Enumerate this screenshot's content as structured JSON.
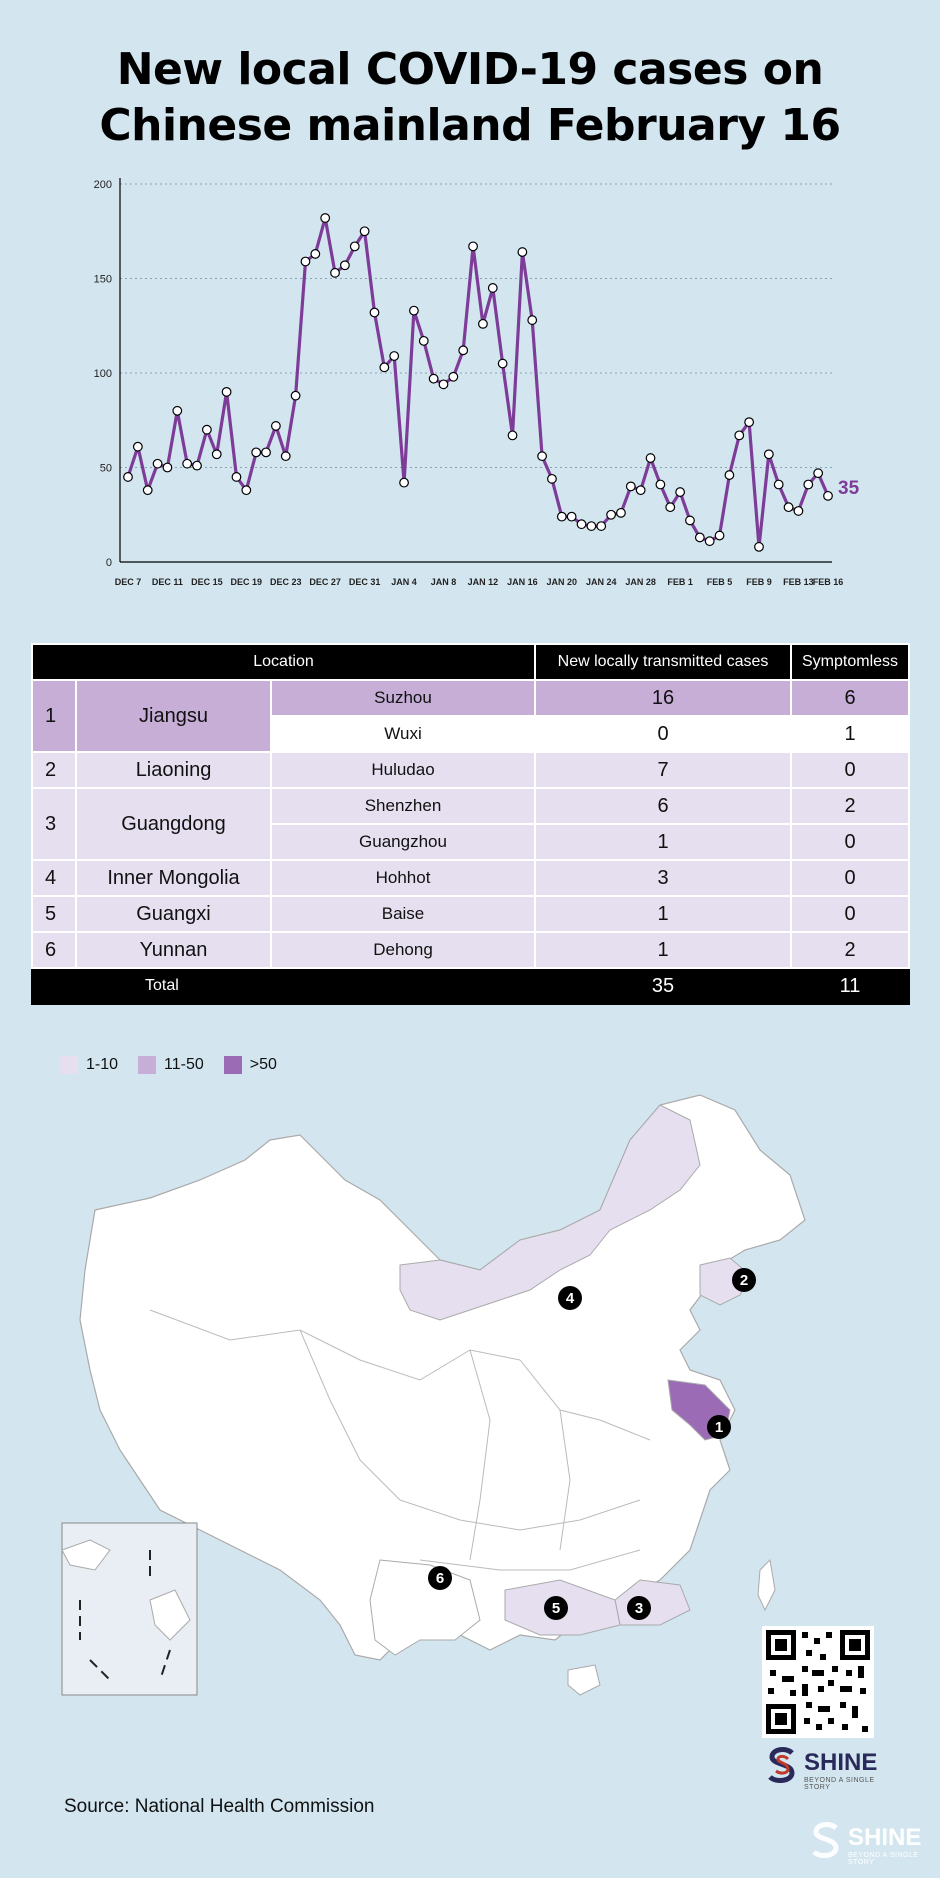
{
  "title_line1": "New local COVID-19 cases on",
  "title_line2": "Chinese mainland  February 16",
  "chart_data": {
    "type": "line",
    "title": "New local COVID-19 cases on Chinese mainland  February 16",
    "xlabel": "",
    "ylabel": "",
    "ylim": [
      0,
      200
    ],
    "yticks": [
      0,
      50,
      100,
      150,
      200
    ],
    "grid": true,
    "x_tick_labels": [
      "DEC 7",
      "DEC 11",
      "DEC 15",
      "DEC 19",
      "DEC 23",
      "DEC 27",
      "DEC 31",
      "JAN 4",
      "JAN 8",
      "JAN 12",
      "JAN 16",
      "JAN 20",
      "JAN 24",
      "JAN 28",
      "FEB 1",
      "FEB 5",
      "FEB 9",
      "FEB 13",
      "FEB 16"
    ],
    "series": [
      {
        "color": "#7d3c98",
        "values": [
          45,
          61,
          38,
          52,
          50,
          80,
          52,
          51,
          70,
          57,
          90,
          45,
          38,
          58,
          58,
          72,
          56,
          88,
          159,
          163,
          182,
          153,
          157,
          167,
          175,
          132,
          103,
          109,
          42,
          133,
          117,
          97,
          94,
          98,
          112,
          167,
          126,
          145,
          105,
          67,
          164,
          128,
          56,
          44,
          24,
          24,
          20,
          19,
          19,
          25,
          26,
          40,
          38,
          55,
          41,
          29,
          37,
          22,
          13,
          11,
          14,
          46,
          67,
          74,
          8,
          57,
          41,
          29,
          27,
          41,
          47,
          35
        ],
        "last_label": "35"
      }
    ]
  },
  "table": {
    "headers": {
      "location": "Location",
      "cases": "New locally transmitted cases",
      "symptomless": "Symptomless"
    },
    "rows": [
      {
        "rank": "1",
        "province": "Jiangsu",
        "cities": [
          {
            "city": "Suzhou",
            "cases": "16",
            "symptomless": "6"
          },
          {
            "city": "Wuxi",
            "cases": "0",
            "symptomless": "1"
          }
        ]
      },
      {
        "rank": "2",
        "province": "Liaoning",
        "cities": [
          {
            "city": "Huludao",
            "cases": "7",
            "symptomless": "0"
          }
        ]
      },
      {
        "rank": "3",
        "province": "Guangdong",
        "cities": [
          {
            "city": "Shenzhen",
            "cases": "6",
            "symptomless": "2"
          },
          {
            "city": "Guangzhou",
            "cases": "1",
            "symptomless": "0"
          }
        ]
      },
      {
        "rank": "4",
        "province": "Inner Mongolia",
        "cities": [
          {
            "city": "Hohhot",
            "cases": "3",
            "symptomless": "0"
          }
        ]
      },
      {
        "rank": "5",
        "province": "Guangxi",
        "cities": [
          {
            "city": "Baise",
            "cases": "1",
            "symptomless": "0"
          }
        ]
      },
      {
        "rank": "6",
        "province": "Yunnan",
        "cities": [
          {
            "city": "Dehong",
            "cases": "1",
            "symptomless": "2"
          }
        ]
      }
    ],
    "total": {
      "label": "Total",
      "cases": "35",
      "symptomless": "11"
    }
  },
  "legend": [
    {
      "label": "1-10",
      "color": "#e6dff0"
    },
    {
      "label": "11-50",
      "color": "#c6aed6"
    },
    {
      "label": ">50",
      "color": "#9b6bb5"
    }
  ],
  "map_markers": [
    "1",
    "2",
    "3",
    "4",
    "5",
    "6"
  ],
  "source": "Source: National Health Commission",
  "logo": {
    "name": "SHINE",
    "tagline": "BEYOND A SINGLE STORY"
  }
}
